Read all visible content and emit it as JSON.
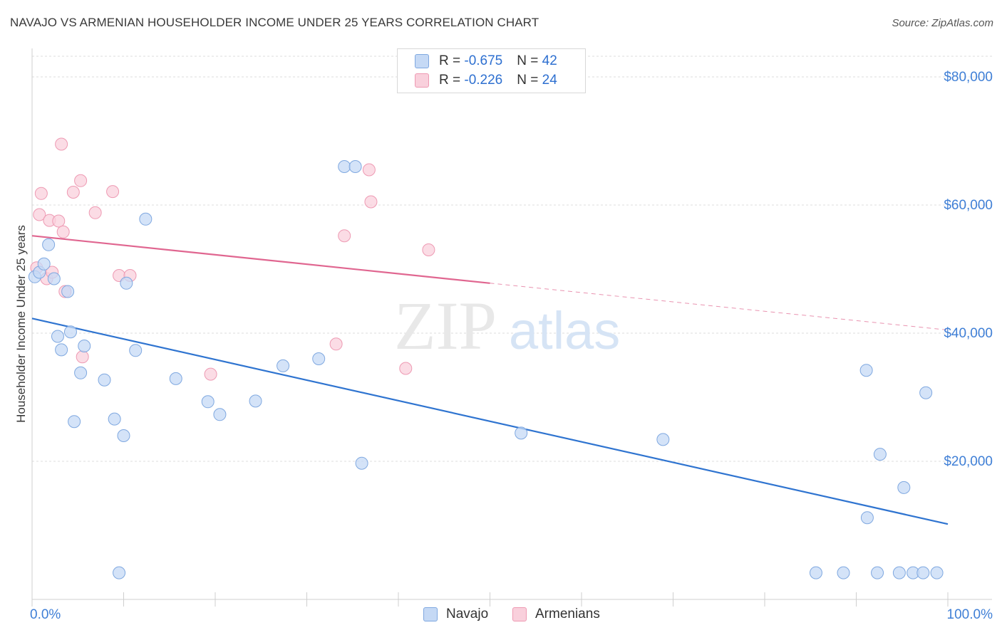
{
  "title": "NAVAJO VS ARMENIAN HOUSEHOLDER INCOME UNDER 25 YEARS CORRELATION CHART",
  "source": "Source: ZipAtlas.com",
  "watermark": {
    "zip": "ZIP",
    "atlas": "atlas"
  },
  "legend": {
    "rows": [
      {
        "r_label": "R = ",
        "r_value": "-0.675",
        "n_label": "N = ",
        "n_value": "42"
      },
      {
        "r_label": "R = ",
        "r_value": "-0.226",
        "n_label": "N = ",
        "n_value": "24"
      }
    ]
  },
  "colors": {
    "navajo_fill": "#c5d9f5",
    "navajo_stroke": "#7fa8e0",
    "navajo_line": "#2f74d0",
    "armenian_fill": "#f9d0dc",
    "armenian_stroke": "#ee9ab3",
    "armenian_line": "#e06690",
    "tick_label": "#3f7fd6",
    "grid": "#dcdcdc"
  },
  "chart_data": {
    "type": "scatter",
    "title": "NAVAJO VS ARMENIAN HOUSEHOLDER INCOME UNDER 25 YEARS CORRELATION CHART",
    "xlabel": "",
    "ylabel": "Householder Income Under 25 years",
    "xlim": [
      0,
      100
    ],
    "ylim": [
      0,
      84000
    ],
    "x_tick_labels": [
      "0.0%",
      "100.0%"
    ],
    "y_ticks": [
      20000,
      40000,
      60000,
      80000
    ],
    "y_tick_labels": [
      "$20,000",
      "$40,000",
      "$60,000",
      "$80,000"
    ],
    "grid": true,
    "legend_position": "top-center",
    "series": [
      {
        "name": "Navajo",
        "r": -0.675,
        "n": 42,
        "points": [
          [
            0.3,
            48800
          ],
          [
            0.8,
            49500
          ],
          [
            1.3,
            50800
          ],
          [
            1.8,
            53800
          ],
          [
            2.4,
            48500
          ],
          [
            2.8,
            39500
          ],
          [
            3.2,
            37400
          ],
          [
            3.9,
            46500
          ],
          [
            4.2,
            40200
          ],
          [
            4.6,
            26200
          ],
          [
            5.3,
            33800
          ],
          [
            5.7,
            38000
          ],
          [
            7.9,
            32700
          ],
          [
            9.0,
            26600
          ],
          [
            9.5,
            2600
          ],
          [
            10.0,
            24000
          ],
          [
            10.3,
            47800
          ],
          [
            11.3,
            37300
          ],
          [
            12.4,
            57800
          ],
          [
            15.7,
            32900
          ],
          [
            19.2,
            29300
          ],
          [
            20.5,
            27300
          ],
          [
            24.4,
            29400
          ],
          [
            27.4,
            34900
          ],
          [
            31.3,
            36000
          ],
          [
            34.1,
            66000
          ],
          [
            35.3,
            66000
          ],
          [
            36.0,
            19700
          ],
          [
            53.4,
            24400
          ],
          [
            68.9,
            23400
          ],
          [
            85.6,
            2600
          ],
          [
            88.6,
            2600
          ],
          [
            91.1,
            34200
          ],
          [
            91.2,
            11200
          ],
          [
            92.3,
            2600
          ],
          [
            92.6,
            21100
          ],
          [
            94.7,
            2600
          ],
          [
            95.2,
            15900
          ],
          [
            96.2,
            2600
          ],
          [
            97.3,
            2600
          ],
          [
            97.6,
            30700
          ],
          [
            98.8,
            2600
          ]
        ],
        "trend": {
          "x": [
            0,
            100
          ],
          "y": [
            42300,
            10200
          ]
        }
      },
      {
        "name": "Armenians",
        "r": -0.226,
        "n": 24,
        "points": [
          [
            0.5,
            50200
          ],
          [
            0.8,
            58500
          ],
          [
            1.0,
            61800
          ],
          [
            1.6,
            48500
          ],
          [
            1.9,
            57600
          ],
          [
            2.2,
            49500
          ],
          [
            2.9,
            57500
          ],
          [
            3.2,
            69500
          ],
          [
            3.4,
            55800
          ],
          [
            3.6,
            46500
          ],
          [
            4.5,
            62000
          ],
          [
            5.3,
            63800
          ],
          [
            5.5,
            36300
          ],
          [
            6.9,
            58800
          ],
          [
            8.8,
            62100
          ],
          [
            9.5,
            49000
          ],
          [
            10.7,
            49000
          ],
          [
            19.5,
            33600
          ],
          [
            33.2,
            38300
          ],
          [
            34.1,
            55200
          ],
          [
            36.8,
            65500
          ],
          [
            37.0,
            60500
          ],
          [
            40.8,
            34500
          ],
          [
            43.3,
            53000
          ]
        ],
        "trend": {
          "x": [
            0,
            50
          ],
          "y": [
            55200,
            47800
          ]
        },
        "trend_dashed": {
          "x": [
            50,
            100
          ],
          "y": [
            47800,
            40500
          ]
        }
      }
    ]
  },
  "bottom_legend": {
    "navajo": "Navajo",
    "armenians": "Armenians"
  }
}
